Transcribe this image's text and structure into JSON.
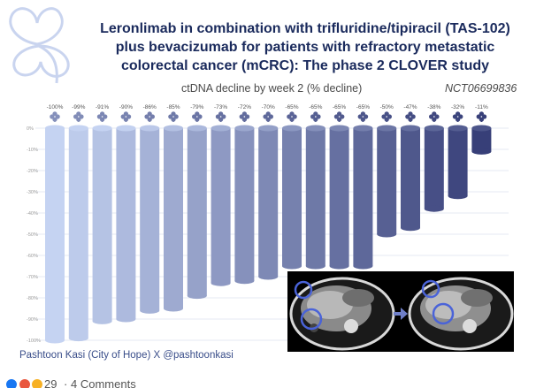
{
  "header": {
    "title_lines": [
      "Leronlimab in combination with trifluridine/tipiracil (TAS-102)",
      "plus bevacizumab for patients with refractory metastatic",
      "colorectal cancer (mCRC): The phase 2 CLOVER study"
    ],
    "trial_id": "NCT06699836",
    "logo_icon": "clover-icon"
  },
  "chart_data": {
    "type": "bar",
    "title": "ctDNA decline by week 2 (% decline)",
    "xlabel": "",
    "ylabel": "",
    "ylim": [
      -100,
      0
    ],
    "yticks": [
      0,
      -10,
      -20,
      -30,
      -40,
      -50,
      -60,
      -70,
      -80,
      -90,
      -100
    ],
    "ytick_labels": [
      "0%",
      "-10%",
      "-20%",
      "-30%",
      "-40%",
      "-50%",
      "-60%",
      "-70%",
      "-80%",
      "-90%",
      "-100%"
    ],
    "values": [
      -100,
      -99,
      -91,
      -90,
      -86,
      -85,
      -79,
      -73,
      -72,
      -70,
      -65,
      -65,
      -65,
      -65,
      -50,
      -47,
      -38,
      -32,
      -11
    ],
    "labels": [
      "-100%",
      "-99%",
      "-91%",
      "-90%",
      "-86%",
      "-85%",
      "-79%",
      "-73%",
      "-72%",
      "-70%",
      "-65%",
      "-65%",
      "-65%",
      "-65%",
      "-50%",
      "-47%",
      "-38%",
      "-32%",
      "-11%"
    ],
    "bar_marker_icon": "clover-icon",
    "grid": true,
    "bar_color_start": "#c5d3f2",
    "bar_color_end": "#373f78"
  },
  "scan_panel": {
    "description_icon": "ct-scan-image",
    "arrow_icon": "arrow-right-icon"
  },
  "credit": "Pashtoon Kasi (City of Hope) X @pashtoonkasi",
  "footer": {
    "reaction_count": "29",
    "separator": "·",
    "comments": "4 Comments",
    "reaction_colors": [
      "#1877f2",
      "#e9573f",
      "#f7b125"
    ]
  }
}
